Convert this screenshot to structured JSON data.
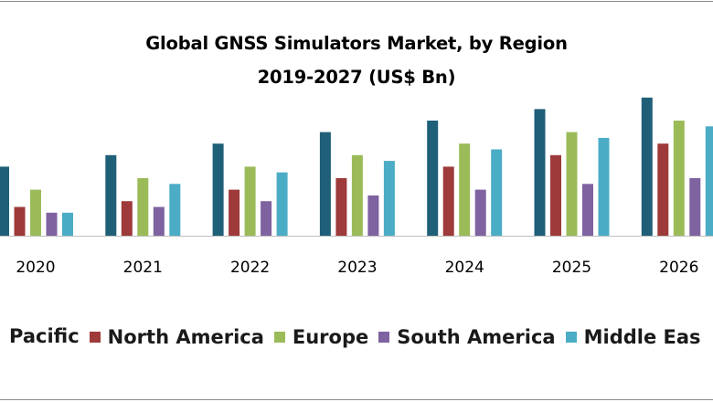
{
  "chart_data": {
    "type": "bar",
    "title": "Global GNSS Simulators Market, by Region",
    "subtitle": "2019-2027 (US$ Bn)",
    "categories": [
      "2020",
      "2021",
      "2022",
      "2023",
      "2024",
      "2025",
      "2026"
    ],
    "series": [
      {
        "name": "Pacific",
        "color": "#1f5f78",
        "values": [
          3.0,
          3.5,
          4.0,
          4.5,
          5.0,
          5.5,
          6.0
        ]
      },
      {
        "name": "North America",
        "color": "#9e3a3a",
        "values": [
          1.25,
          1.5,
          2.0,
          2.5,
          3.0,
          3.5,
          4.0
        ]
      },
      {
        "name": "Europe",
        "color": "#9bbb59",
        "values": [
          2.0,
          2.5,
          3.0,
          3.5,
          4.0,
          4.5,
          5.0
        ]
      },
      {
        "name": "South America",
        "color": "#7f62a0",
        "values": [
          1.0,
          1.25,
          1.5,
          1.75,
          2.0,
          2.25,
          2.5
        ]
      },
      {
        "name": "Middle East",
        "color": "#4bacc6",
        "values": [
          1.0,
          2.25,
          2.75,
          3.25,
          3.75,
          4.25,
          4.75
        ]
      }
    ],
    "legend_labels": [
      "Pacific",
      "North America",
      "Europe",
      "South America",
      "Middle Eas"
    ],
    "ylim": [
      0,
      6.2
    ],
    "grid": false,
    "legend_position": "bottom"
  }
}
